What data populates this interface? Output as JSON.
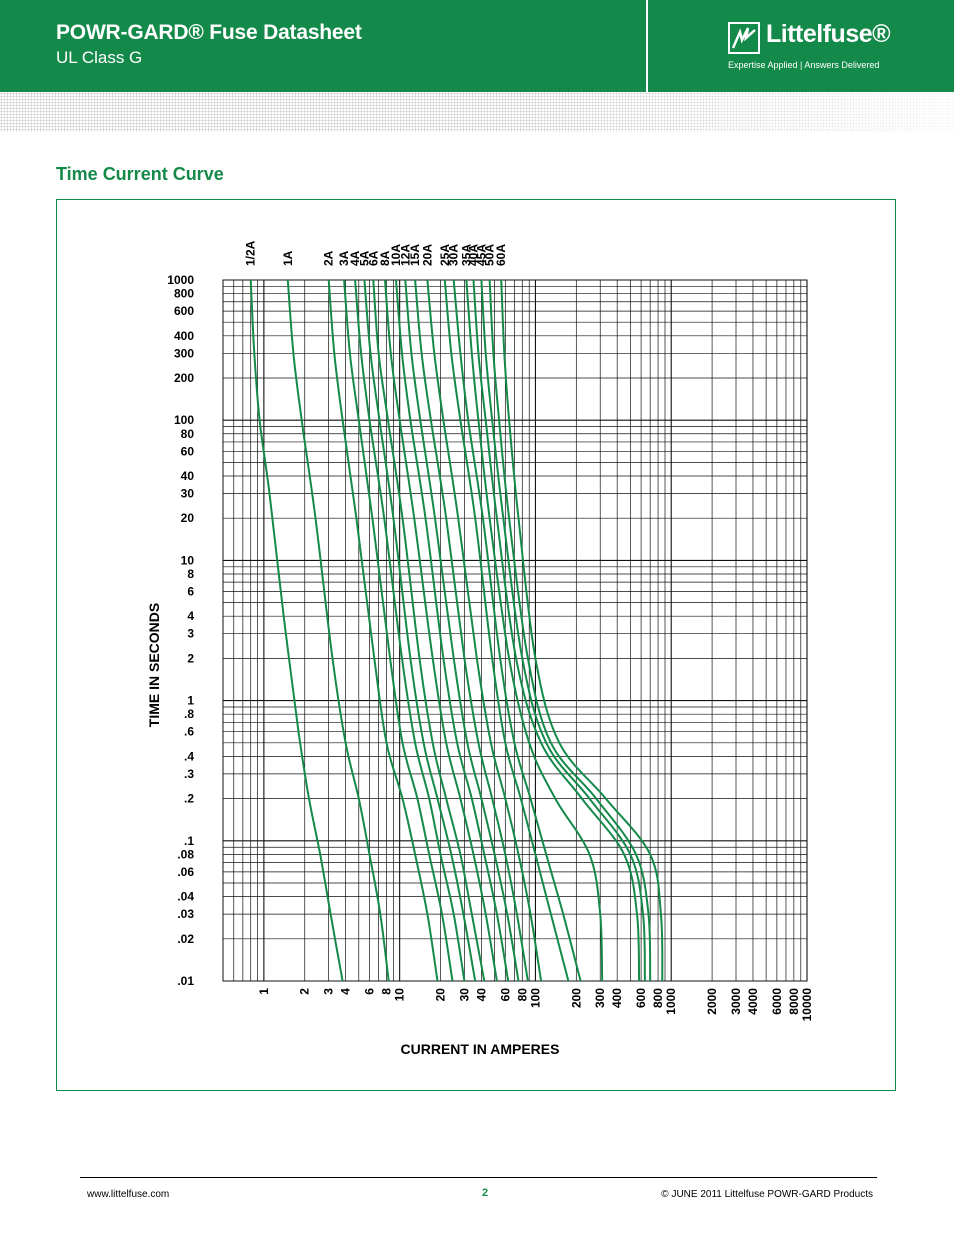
{
  "header": {
    "title": "POWR-GARD® Fuse Datasheet",
    "subtitle": "UL Class G",
    "brand": "Littelfuse®",
    "tagline": "Expertise Applied  |  Answers Delivered",
    "bg_color": "#148a4a"
  },
  "section": {
    "title": "Time Current Curve"
  },
  "chart_data": {
    "type": "line",
    "title": "",
    "xlabel": "CURRENT IN AMPERES",
    "ylabel": "TIME IN SECONDS",
    "x_scale": "log",
    "y_scale": "log",
    "xlim": [
      0.5,
      10000
    ],
    "ylim": [
      0.01,
      1000
    ],
    "grid": true,
    "line_color": "#148a4a",
    "x_tick_labels": [
      {
        "value": 1,
        "label": "1"
      },
      {
        "value": 2,
        "label": "2"
      },
      {
        "value": 3,
        "label": "3"
      },
      {
        "value": 4,
        "label": "4"
      },
      {
        "value": 6,
        "label": "6"
      },
      {
        "value": 8,
        "label": "8"
      },
      {
        "value": 10,
        "label": "10"
      },
      {
        "value": 20,
        "label": "20"
      },
      {
        "value": 30,
        "label": "30"
      },
      {
        "value": 40,
        "label": "40"
      },
      {
        "value": 60,
        "label": "60"
      },
      {
        "value": 80,
        "label": "80"
      },
      {
        "value": 100,
        "label": "100"
      },
      {
        "value": 200,
        "label": "200"
      },
      {
        "value": 300,
        "label": "300"
      },
      {
        "value": 400,
        "label": "400"
      },
      {
        "value": 600,
        "label": "600"
      },
      {
        "value": 800,
        "label": "800"
      },
      {
        "value": 1000,
        "label": "1000"
      },
      {
        "value": 2000,
        "label": "2000"
      },
      {
        "value": 3000,
        "label": "3000"
      },
      {
        "value": 4000,
        "label": "4000"
      },
      {
        "value": 6000,
        "label": "6000"
      },
      {
        "value": 8000,
        "label": "8000"
      },
      {
        "value": 10000,
        "label": "10000"
      }
    ],
    "y_tick_labels": [
      {
        "value": 1000,
        "label": "1000"
      },
      {
        "value": 800,
        "label": "800"
      },
      {
        "value": 600,
        "label": "600"
      },
      {
        "value": 400,
        "label": "400"
      },
      {
        "value": 300,
        "label": "300"
      },
      {
        "value": 200,
        "label": "200"
      },
      {
        "value": 100,
        "label": "100"
      },
      {
        "value": 80,
        "label": "80"
      },
      {
        "value": 60,
        "label": "60"
      },
      {
        "value": 40,
        "label": "40"
      },
      {
        "value": 30,
        "label": "30"
      },
      {
        "value": 20,
        "label": "20"
      },
      {
        "value": 10,
        "label": "10"
      },
      {
        "value": 8,
        "label": "8"
      },
      {
        "value": 6,
        "label": "6"
      },
      {
        "value": 4,
        "label": "4"
      },
      {
        "value": 3,
        "label": "3"
      },
      {
        "value": 2,
        "label": "2"
      },
      {
        "value": 1,
        "label": "1"
      },
      {
        "value": 0.8,
        "label": ".8"
      },
      {
        "value": 0.6,
        "label": ".6"
      },
      {
        "value": 0.4,
        "label": ".4"
      },
      {
        "value": 0.3,
        "label": ".3"
      },
      {
        "value": 0.2,
        "label": ".2"
      },
      {
        "value": 0.1,
        "label": ".1"
      },
      {
        "value": 0.08,
        "label": ".08"
      },
      {
        "value": 0.06,
        "label": ".06"
      },
      {
        "value": 0.04,
        "label": ".04"
      },
      {
        "value": 0.03,
        "label": ".03"
      },
      {
        "value": 0.02,
        "label": ".02"
      },
      {
        "value": 0.01,
        "label": ".01"
      }
    ],
    "series": [
      {
        "name": "1/2A",
        "x": [
          0.8,
          0.85,
          0.93,
          1.1,
          1.4,
          1.8,
          2.15,
          2.6,
          3.1,
          3.8
        ],
        "y": [
          1000,
          300,
          100,
          30,
          4,
          0.6,
          0.2,
          0.08,
          0.03,
          0.01
        ]
      },
      {
        "name": "1A",
        "x": [
          1.5,
          1.65,
          1.9,
          2.4,
          3.2,
          4.0,
          5.0,
          6.0,
          7.2,
          8.3
        ],
        "y": [
          1000,
          300,
          100,
          20,
          2,
          0.5,
          0.2,
          0.08,
          0.03,
          0.01
        ]
      },
      {
        "name": "2A",
        "x": [
          3.0,
          3.3,
          3.8,
          4.8,
          6.5,
          8.0,
          10.5,
          13.0,
          16.0,
          19.0
        ],
        "y": [
          1000,
          300,
          100,
          20,
          2,
          0.5,
          0.2,
          0.08,
          0.03,
          0.01
        ]
      },
      {
        "name": "3A",
        "x": [
          3.9,
          4.3,
          5.0,
          6.3,
          8.5,
          10.5,
          13.5,
          16.5,
          20.5,
          24.5
        ],
        "y": [
          1000,
          300,
          100,
          20,
          2,
          0.5,
          0.2,
          0.08,
          0.03,
          0.01
        ]
      },
      {
        "name": "4A",
        "x": [
          4.7,
          5.2,
          6.0,
          7.7,
          10.4,
          13.0,
          16.5,
          20.0,
          25.0,
          30.0
        ],
        "y": [
          1000,
          300,
          100,
          20,
          2,
          0.5,
          0.2,
          0.08,
          0.03,
          0.01
        ]
      },
      {
        "name": "5A",
        "x": [
          5.5,
          6.1,
          7.1,
          9.0,
          12.0,
          15.0,
          19.0,
          24.0,
          29.5,
          36.0
        ],
        "y": [
          1000,
          300,
          100,
          20,
          2,
          0.5,
          0.2,
          0.08,
          0.03,
          0.01
        ]
      },
      {
        "name": "6A",
        "x": [
          6.4,
          7.0,
          8.2,
          10.5,
          14.0,
          17.5,
          22.0,
          28.0,
          34.0,
          42.0
        ],
        "y": [
          1000,
          300,
          100,
          20,
          2,
          0.5,
          0.2,
          0.08,
          0.03,
          0.01
        ]
      },
      {
        "name": "8A",
        "x": [
          7.8,
          8.6,
          10.0,
          12.8,
          17.5,
          22.0,
          28.0,
          35.0,
          43.0,
          52.0
        ],
        "y": [
          1000,
          300,
          100,
          20,
          2,
          0.5,
          0.2,
          0.08,
          0.03,
          0.01
        ]
      },
      {
        "name": "10A",
        "x": [
          9.4,
          10.4,
          12.0,
          15.5,
          21.0,
          26.5,
          34.0,
          42.0,
          52.0,
          63.0
        ],
        "y": [
          1000,
          300,
          100,
          20,
          2,
          0.5,
          0.2,
          0.08,
          0.03,
          0.01
        ]
      },
      {
        "name": "12A",
        "x": [
          11.0,
          12.2,
          14.2,
          18.2,
          25.0,
          31.5,
          40.0,
          50.0,
          62.0,
          75.0
        ],
        "y": [
          1000,
          300,
          100,
          20,
          2,
          0.5,
          0.2,
          0.08,
          0.03,
          0.01
        ]
      },
      {
        "name": "15A",
        "x": [
          13.0,
          14.5,
          17.0,
          22.0,
          30.0,
          38.0,
          48.0,
          60.0,
          73.0,
          88.0
        ],
        "y": [
          1000,
          300,
          100,
          20,
          2,
          0.5,
          0.2,
          0.08,
          0.03,
          0.01
        ]
      },
      {
        "name": "20A",
        "x": [
          16.0,
          18.0,
          21.0,
          27.0,
          37.0,
          47.0,
          60.0,
          75.0,
          92.0,
          110
        ],
        "y": [
          1000,
          300,
          100,
          20,
          2,
          0.5,
          0.2,
          0.08,
          0.03,
          0.01
        ]
      },
      {
        "name": "25A",
        "x": [
          21.5,
          24.0,
          28.0,
          36.0,
          48.0,
          60.0,
          78.0,
          100,
          130,
          175
        ],
        "y": [
          1000,
          300,
          100,
          20,
          2,
          0.5,
          0.2,
          0.08,
          0.03,
          0.01
        ]
      },
      {
        "name": "30A",
        "x": [
          25.0,
          28.0,
          32.0,
          41.0,
          55.0,
          70.0,
          92.0,
          120,
          160,
          215
        ],
        "y": [
          1000,
          300,
          100,
          20,
          2,
          0.5,
          0.2,
          0.08,
          0.03,
          0.01
        ]
      },
      {
        "name": "35A",
        "x": [
          31.0,
          34.0,
          38.0,
          46.0,
          64.0,
          90.0,
          140,
          250,
          300,
          310
        ],
        "y": [
          1000,
          300,
          100,
          20,
          2,
          0.5,
          0.2,
          0.08,
          0.03,
          0.01
        ]
      },
      {
        "name": "40A",
        "x": [
          35.0,
          38.0,
          43.0,
          52.0,
          72.0,
          110,
          220,
          450,
          560,
          580
        ],
        "y": [
          1000,
          300,
          100,
          20,
          2,
          0.5,
          0.2,
          0.08,
          0.03,
          0.01
        ]
      },
      {
        "name": "45A",
        "x": [
          40.0,
          43.0,
          48.0,
          58.0,
          80.0,
          120,
          250,
          500,
          620,
          640
        ],
        "y": [
          1000,
          300,
          100,
          20,
          2,
          0.5,
          0.2,
          0.08,
          0.03,
          0.01
        ]
      },
      {
        "name": "50A",
        "x": [
          46.0,
          49.0,
          54.0,
          64.0,
          88.0,
          130,
          280,
          550,
          680,
          700
        ],
        "y": [
          1000,
          300,
          100,
          20,
          2,
          0.5,
          0.2,
          0.08,
          0.03,
          0.01
        ]
      },
      {
        "name": "60A",
        "x": [
          56.0,
          59.0,
          64.0,
          75.0,
          100,
          150,
          330,
          700,
          840,
          860
        ],
        "y": [
          1000,
          300,
          100,
          20,
          2,
          0.5,
          0.2,
          0.08,
          0.03,
          0.01
        ]
      }
    ]
  },
  "footer": {
    "website": "www.littelfuse.com",
    "page": "2",
    "copyright": "© JUNE 2011 Littelfuse POWR-GARD Products"
  }
}
